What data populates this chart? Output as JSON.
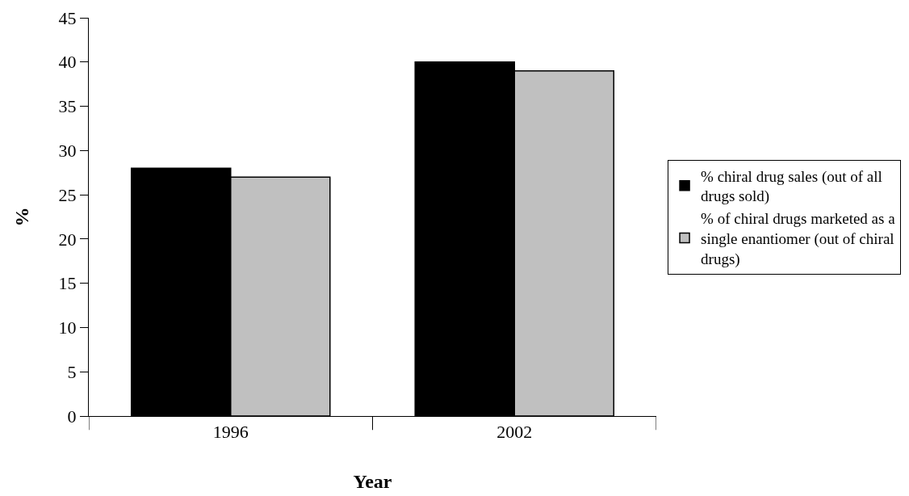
{
  "chart_data": {
    "type": "bar",
    "xlabel": "Year",
    "ylabel": "%",
    "categories": [
      "1996",
      "2002"
    ],
    "series": [
      {
        "name": "% chiral drug sales (out of all drugs sold)",
        "color": "#000000",
        "values": [
          28,
          40
        ]
      },
      {
        "name": "% of chiral drugs marketed as a single enantiomer (out of chiral drugs)",
        "color": "#c0c0c0",
        "values": [
          27,
          39
        ]
      }
    ],
    "ylim": [
      0,
      45
    ],
    "yticks": [
      0,
      5,
      10,
      15,
      20,
      25,
      30,
      35,
      40,
      45
    ],
    "grid": false,
    "legend": "right"
  }
}
